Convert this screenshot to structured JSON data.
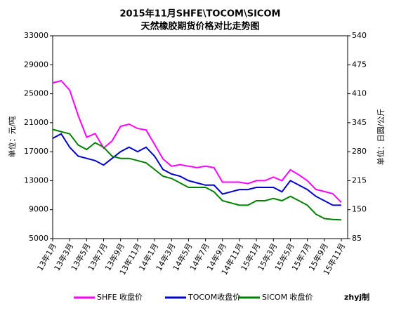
{
  "chart_data": {
    "type": "line",
    "title": "2015年11月SHFE\\TOCOM\\SICOM",
    "subtitle": "天然橡胶期货价格对比走势图",
    "y_label": "单位：元/吨",
    "y2_label": "单位：日圆/公斤",
    "credit": "zhyj制",
    "categories": [
      "13年1月",
      null,
      "13年3月",
      null,
      "13年5月",
      null,
      "13年7月",
      null,
      "13年9月",
      null,
      "13年11月",
      null,
      "14年1月",
      null,
      "14年3月",
      null,
      "14年5月",
      null,
      "14年7月",
      null,
      "14年9月",
      null,
      "14年11月",
      null,
      "15年1月",
      null,
      "15年3月",
      null,
      "15年5月",
      null,
      "15年7月",
      null,
      "15年9月",
      null,
      "15年11月"
    ],
    "ylim": [
      5000,
      33000
    ],
    "yticks": [
      5000,
      9000,
      13000,
      17000,
      21000,
      25000,
      29000,
      33000
    ],
    "y2lim": [
      85,
      540
    ],
    "y2ticks": [
      85,
      150,
      215,
      280,
      345,
      410,
      475,
      540
    ],
    "grid": false,
    "legend": "bottom",
    "series": [
      {
        "name": "SHFE 收盘价",
        "color": "#ff00ff",
        "values": [
          26500,
          26800,
          25500,
          22000,
          19000,
          19500,
          17500,
          18500,
          20500,
          20800,
          20200,
          20000,
          18000,
          16000,
          15000,
          15200,
          15000,
          14800,
          15000,
          14800,
          12800,
          12800,
          12800,
          12600,
          13000,
          13000,
          13500,
          13000,
          14500,
          13800,
          13000,
          11800,
          11500,
          11200,
          10000
        ]
      },
      {
        "name": "TOCOM收盘价",
        "color": "#0000cc",
        "axis": "y2",
        "values": [
          310,
          320,
          290,
          270,
          265,
          260,
          250,
          265,
          280,
          290,
          280,
          290,
          270,
          240,
          230,
          225,
          215,
          210,
          205,
          205,
          185,
          190,
          195,
          195,
          200,
          200,
          200,
          190,
          215,
          205,
          195,
          180,
          170,
          160,
          160
        ]
      },
      {
        "name": "SICOM 收盘价",
        "color": "#008000",
        "axis": "y2",
        "values": [
          330,
          325,
          320,
          295,
          285,
          300,
          290,
          270,
          265,
          265,
          260,
          255,
          240,
          225,
          220,
          210,
          200,
          200,
          200,
          190,
          170,
          165,
          160,
          160,
          170,
          170,
          175,
          170,
          180,
          170,
          160,
          140,
          130,
          128,
          127
        ]
      }
    ]
  }
}
